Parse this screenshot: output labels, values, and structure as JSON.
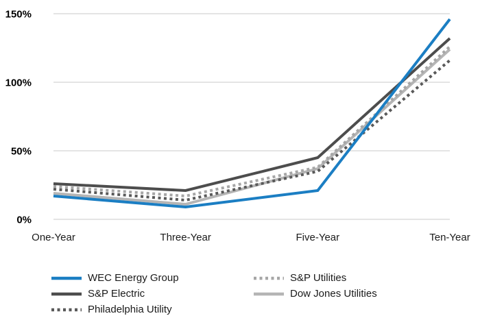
{
  "chart_data": {
    "type": "line",
    "title": "",
    "xlabel": "",
    "ylabel": "",
    "categories": [
      "One-Year",
      "Three-Year",
      "Five-Year",
      "Ten-Year"
    ],
    "series": [
      {
        "name": "WEC Energy Group",
        "color": "#1B7EC3",
        "style": "solid",
        "values": [
          17,
          9,
          21,
          146
        ]
      },
      {
        "name": "S&P Electric",
        "color": "#4D4D4D",
        "style": "solid",
        "values": [
          26,
          21,
          45,
          132
        ]
      },
      {
        "name": "Philadelphia Utility",
        "color": "#595959",
        "style": "dotted",
        "values": [
          22,
          14,
          35,
          116
        ]
      },
      {
        "name": "S&P Utilities",
        "color": "#A6A6A6",
        "style": "dotted",
        "values": [
          24,
          17,
          38,
          126
        ]
      },
      {
        "name": "Dow Jones Utilities",
        "color": "#B5B5B5",
        "style": "solid",
        "values": [
          19,
          11,
          37,
          124
        ]
      }
    ],
    "yticks": [
      "0%",
      "50%",
      "100%",
      "150%"
    ],
    "ytick_values": [
      0,
      50,
      100,
      150
    ],
    "ylim": [
      0,
      155
    ],
    "grid": true,
    "gridline_color": "#DBDBDB",
    "legend_position": "bottom",
    "legend_columns": [
      [
        0,
        1,
        2
      ],
      [
        3,
        4
      ]
    ]
  }
}
